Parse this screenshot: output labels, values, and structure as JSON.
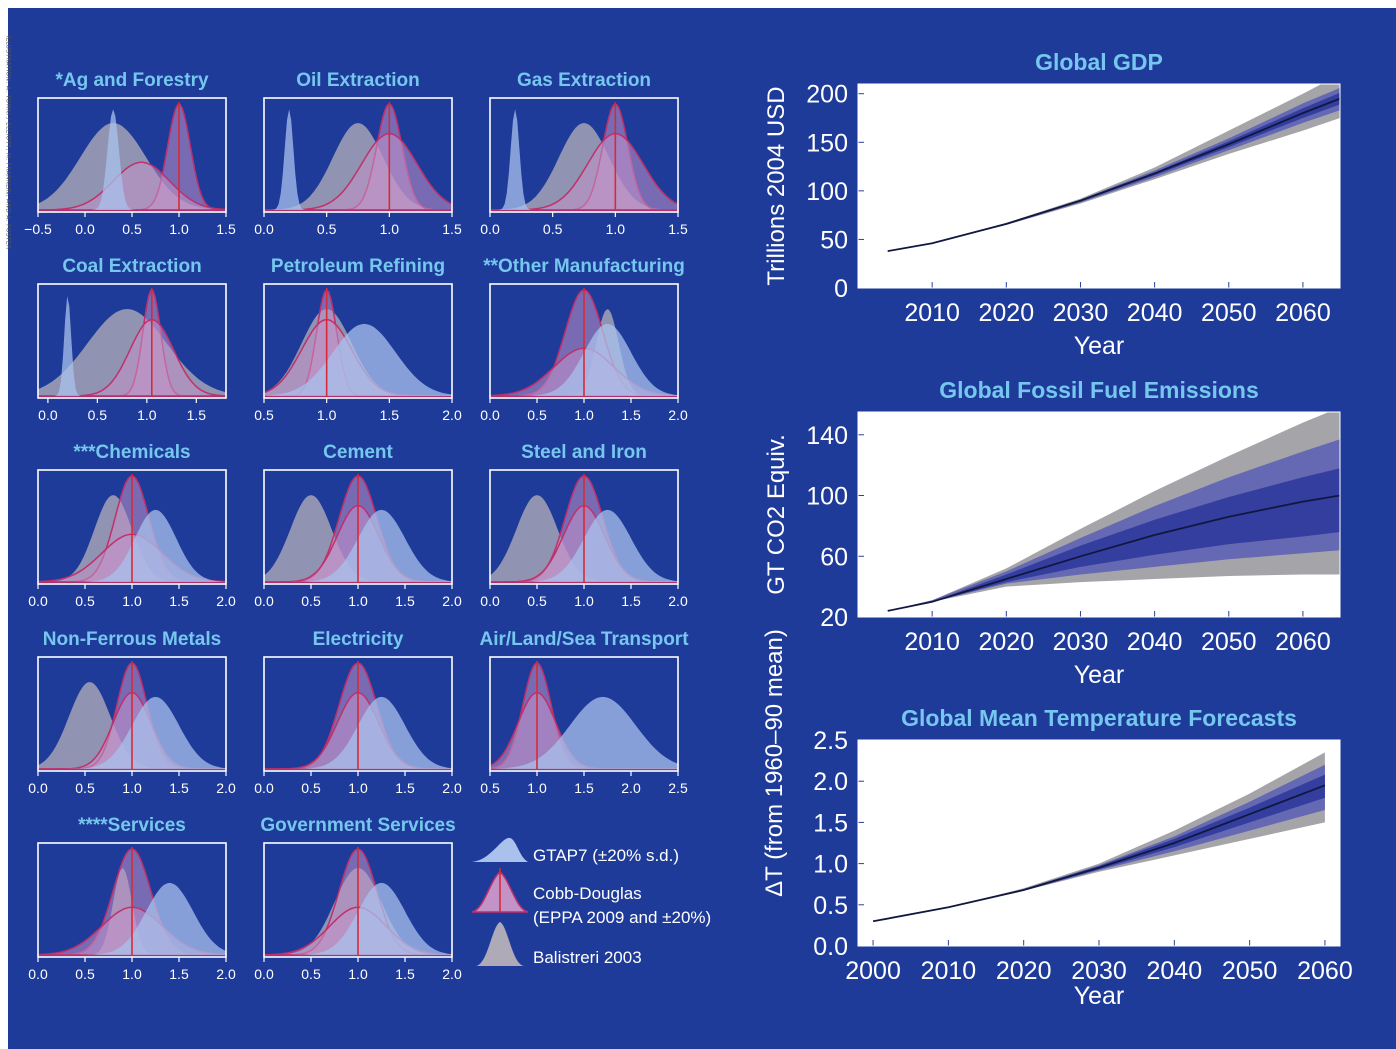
{
  "credit": "ILLUSTRATION: A. TOMKI / ELLIOTT, M. FRANKLIN, AND A. FOSTER",
  "colors": {
    "background": "#1e3b9a",
    "panel": "#1e3b9a",
    "title": "#76c7ee",
    "gtap": "#a9c1ec",
    "cobb": "#c393c8",
    "cobb_line": "#c0306a",
    "balistreri": "#aeaab8",
    "cd_marker": "#d62b36",
    "band_outer": "#8e8f93",
    "band_mid": "#5e62b4",
    "band_inner": "#2e3a9c",
    "median": "#101840"
  },
  "small_multiples": {
    "panels": [
      {
        "title": "*Ag and Forestry",
        "xlim": [
          -0.5,
          1.5
        ],
        "ticks": [
          "−0.5",
          "0.0",
          "0.5",
          "1.0",
          "1.5"
        ],
        "tick_values": [
          -0.5,
          0.0,
          0.5,
          1.0,
          1.5
        ],
        "cd": 1.0,
        "gtap": {
          "mu": 0.3,
          "sd": 0.06
        },
        "cobb": [
          {
            "mu": 1.0,
            "sd": 0.12
          },
          {
            "mu": 0.6,
            "sd": 0.3
          }
        ],
        "bal": {
          "mu": 0.3,
          "sd": 0.35
        }
      },
      {
        "title": "Oil Extraction",
        "xlim": [
          0.0,
          1.5
        ],
        "ticks": [
          "0.0",
          "0.5",
          "1.0",
          "1.5"
        ],
        "tick_values": [
          0.0,
          0.5,
          1.0,
          1.5
        ],
        "cd": 1.0,
        "gtap": {
          "mu": 0.2,
          "sd": 0.035
        },
        "cobb": [
          {
            "mu": 1.0,
            "sd": 0.1
          },
          {
            "mu": 1.0,
            "sd": 0.22
          }
        ],
        "bal": {
          "mu": 0.75,
          "sd": 0.2
        }
      },
      {
        "title": "Gas Extraction",
        "xlim": [
          0.0,
          1.5
        ],
        "ticks": [
          "0.0",
          "0.5",
          "1.0",
          "1.5"
        ],
        "tick_values": [
          0.0,
          0.5,
          1.0,
          1.5
        ],
        "cd": 1.0,
        "gtap": {
          "mu": 0.2,
          "sd": 0.035
        },
        "cobb": [
          {
            "mu": 1.0,
            "sd": 0.1
          },
          {
            "mu": 1.0,
            "sd": 0.22
          }
        ],
        "bal": {
          "mu": 0.75,
          "sd": 0.2
        }
      },
      {
        "title": "Coal Extraction",
        "xlim": [
          -0.1,
          1.8
        ],
        "ticks": [
          "0.0",
          "0.5",
          "1.0",
          "1.5"
        ],
        "tick_values": [
          0.0,
          0.5,
          1.0,
          1.5
        ],
        "cd": 1.05,
        "gtap": {
          "mu": 0.2,
          "sd": 0.035
        },
        "cobb": [
          {
            "mu": 1.05,
            "sd": 0.09
          },
          {
            "mu": 1.05,
            "sd": 0.22
          }
        ],
        "bal": {
          "mu": 0.8,
          "sd": 0.4
        }
      },
      {
        "title": "Petroleum Refining",
        "xlim": [
          0.5,
          2.0
        ],
        "ticks": [
          "0.5",
          "1.0",
          "1.5",
          "2.0"
        ],
        "tick_values": [
          0.5,
          1.0,
          1.5,
          2.0
        ],
        "cd": 1.0,
        "gtap": {
          "mu": 1.3,
          "sd": 0.25
        },
        "cobb": [
          {
            "mu": 1.0,
            "sd": 0.08
          },
          {
            "mu": 1.0,
            "sd": 0.2
          }
        ],
        "bal": {
          "mu": 1.0,
          "sd": 0.2
        }
      },
      {
        "title": "**Other Manufacturing",
        "xlim": [
          0.0,
          2.0
        ],
        "ticks": [
          "0.0",
          "0.5",
          "1.0",
          "1.5",
          "2.0"
        ],
        "tick_values": [
          0.0,
          0.5,
          1.0,
          1.5,
          2.0
        ],
        "cd": 1.0,
        "gtap": {
          "mu": 1.25,
          "sd": 0.25
        },
        "cobb": [
          {
            "mu": 1.0,
            "sd": 0.2
          },
          {
            "mu": 1.0,
            "sd": 0.32
          }
        ],
        "bal": {
          "mu": 1.25,
          "sd": 0.12
        }
      },
      {
        "title": "***Chemicals",
        "xlim": [
          0.0,
          2.0
        ],
        "ticks": [
          "0.0",
          "0.5",
          "1.0",
          "1.5",
          "2.0"
        ],
        "tick_values": [
          0.0,
          0.5,
          1.0,
          1.5,
          2.0
        ],
        "cd": 1.0,
        "gtap": {
          "mu": 1.25,
          "sd": 0.22
        },
        "cobb": [
          {
            "mu": 1.0,
            "sd": 0.18
          },
          {
            "mu": 1.0,
            "sd": 0.32
          }
        ],
        "bal": {
          "mu": 0.8,
          "sd": 0.2
        }
      },
      {
        "title": "Cement",
        "xlim": [
          0.0,
          2.0
        ],
        "ticks": [
          "0.0",
          "0.5",
          "1.0",
          "1.5",
          "2.0"
        ],
        "tick_values": [
          0.0,
          0.5,
          1.0,
          1.5,
          2.0
        ],
        "cd": 1.0,
        "gtap": {
          "mu": 1.25,
          "sd": 0.25
        },
        "cobb": [
          {
            "mu": 1.0,
            "sd": 0.2
          },
          {
            "mu": 1.0,
            "sd": 0.22
          }
        ],
        "bal": {
          "mu": 0.5,
          "sd": 0.22
        }
      },
      {
        "title": "Steel and Iron",
        "xlim": [
          0.0,
          2.0
        ],
        "ticks": [
          "0.0",
          "0.5",
          "1.0",
          "1.5",
          "2.0"
        ],
        "tick_values": [
          0.0,
          0.5,
          1.0,
          1.5,
          2.0
        ],
        "cd": 1.0,
        "gtap": {
          "mu": 1.25,
          "sd": 0.25
        },
        "cobb": [
          {
            "mu": 1.0,
            "sd": 0.2
          },
          {
            "mu": 1.0,
            "sd": 0.22
          }
        ],
        "bal": {
          "mu": 0.5,
          "sd": 0.22
        }
      },
      {
        "title": "Non-Ferrous Metals",
        "xlim": [
          0.0,
          2.0
        ],
        "ticks": [
          "0.0",
          "0.5",
          "1.0",
          "1.5",
          "2.0"
        ],
        "tick_values": [
          0.0,
          0.5,
          1.0,
          1.5,
          2.0
        ],
        "cd": 1.0,
        "gtap": {
          "mu": 1.25,
          "sd": 0.25
        },
        "cobb": [
          {
            "mu": 1.0,
            "sd": 0.16
          },
          {
            "mu": 1.0,
            "sd": 0.2
          }
        ],
        "bal": {
          "mu": 0.55,
          "sd": 0.22
        }
      },
      {
        "title": "Electricity",
        "xlim": [
          0.0,
          2.0
        ],
        "ticks": [
          "0.0",
          "0.5",
          "1.0",
          "1.5",
          "2.0"
        ],
        "tick_values": [
          0.0,
          0.5,
          1.0,
          1.5,
          2.0
        ],
        "cd": 1.0,
        "gtap": {
          "mu": 1.25,
          "sd": 0.25
        },
        "cobb": [
          {
            "mu": 1.0,
            "sd": 0.2
          },
          {
            "mu": 1.0,
            "sd": 0.22
          }
        ],
        "bal": null
      },
      {
        "title": "Air/Land/Sea Transport",
        "xlim": [
          0.5,
          2.5
        ],
        "ticks": [
          "0.5",
          "1.0",
          "1.5",
          "2.0",
          "2.5"
        ],
        "tick_values": [
          0.5,
          1.0,
          1.5,
          2.0,
          2.5
        ],
        "cd": 1.0,
        "gtap": {
          "mu": 1.7,
          "sd": 0.35
        },
        "cobb": [
          {
            "mu": 1.0,
            "sd": 0.15
          },
          {
            "mu": 1.0,
            "sd": 0.2
          }
        ],
        "bal": null
      },
      {
        "title": "****Services",
        "xlim": [
          0.0,
          2.0
        ],
        "ticks": [
          "0.0",
          "0.5",
          "1.0",
          "1.5",
          "2.0"
        ],
        "tick_values": [
          0.0,
          0.5,
          1.0,
          1.5,
          2.0
        ],
        "cd": 1.0,
        "gtap": {
          "mu": 1.4,
          "sd": 0.25
        },
        "cobb": [
          {
            "mu": 1.0,
            "sd": 0.2
          },
          {
            "mu": 1.0,
            "sd": 0.32
          }
        ],
        "bal": {
          "mu": 0.9,
          "sd": 0.1
        }
      },
      {
        "title": "Government Services",
        "xlim": [
          0.0,
          2.0
        ],
        "ticks": [
          "0.0",
          "0.5",
          "1.0",
          "1.5",
          "2.0"
        ],
        "tick_values": [
          0.0,
          0.5,
          1.0,
          1.5,
          2.0
        ],
        "cd": 1.0,
        "gtap": {
          "mu": 1.25,
          "sd": 0.25
        },
        "cobb": [
          {
            "mu": 1.0,
            "sd": 0.2
          },
          {
            "mu": 1.0,
            "sd": 0.3
          }
        ],
        "bal": {
          "mu": 1.0,
          "sd": 0.25
        }
      }
    ]
  },
  "legend": {
    "gtap": "GTAP7 (±20% s.d.)",
    "cobb_line1": "Cobb-Douglas",
    "cobb_line2": "(EPPA 2009 and ±20%)",
    "balistreri": "Balistreri 2003"
  },
  "chart_data": [
    {
      "type": "line",
      "title": "Global GDP",
      "xlabel": "Year",
      "ylabel": "Trillions 2004 USD",
      "xlim": [
        2000,
        2065
      ],
      "ylim": [
        0,
        210
      ],
      "xticks": [
        2010,
        2020,
        2030,
        2040,
        2050,
        2060
      ],
      "yticks": [
        0,
        50,
        100,
        150,
        200
      ],
      "x": [
        2004,
        2010,
        2020,
        2030,
        2040,
        2050,
        2060,
        2065
      ],
      "median": [
        38,
        46,
        66,
        90,
        118,
        148,
        180,
        195
      ],
      "bands": [
        {
          "name": "outer",
          "low": [
            38,
            46,
            65,
            87,
            112,
            138,
            162,
            175
          ],
          "high": [
            38,
            46,
            67,
            92,
            124,
            162,
            200,
            220
          ]
        },
        {
          "name": "middle",
          "low": [
            38,
            46,
            65,
            88,
            114,
            142,
            170,
            183
          ],
          "high": [
            38,
            46,
            66,
            91,
            121,
            154,
            190,
            206
          ]
        },
        {
          "name": "inner",
          "low": [
            38,
            46,
            66,
            89,
            116,
            145,
            175,
            189
          ],
          "high": [
            38,
            46,
            66,
            90,
            119,
            151,
            185,
            201
          ]
        }
      ]
    },
    {
      "type": "line",
      "title": "Global Fossil Fuel Emissions",
      "xlabel": "Year",
      "ylabel": "GT CO2 Equiv.",
      "xlim": [
        2000,
        2065
      ],
      "ylim": [
        20,
        155
      ],
      "xticks": [
        2010,
        2020,
        2030,
        2040,
        2050,
        2060
      ],
      "yticks": [
        20,
        60,
        100,
        140
      ],
      "x": [
        2004,
        2010,
        2020,
        2030,
        2040,
        2050,
        2060,
        2065
      ],
      "median": [
        24,
        30,
        45,
        60,
        74,
        86,
        96,
        100
      ],
      "bands": [
        {
          "name": "outer",
          "low": [
            24,
            30,
            40,
            43,
            45,
            47,
            48,
            48
          ],
          "high": [
            24,
            31,
            52,
            78,
            103,
            126,
            148,
            158
          ]
        },
        {
          "name": "middle",
          "low": [
            24,
            30,
            42,
            48,
            53,
            58,
            62,
            64
          ],
          "high": [
            24,
            31,
            50,
            72,
            93,
            112,
            129,
            137
          ]
        },
        {
          "name": "inner",
          "low": [
            24,
            30,
            43,
            53,
            61,
            68,
            73,
            76
          ],
          "high": [
            24,
            30,
            48,
            67,
            84,
            99,
            112,
            118
          ]
        }
      ]
    },
    {
      "type": "line",
      "title": "Global Mean Temperature Forecasts",
      "xlabel": "Year",
      "ylabel": "ΔT (from 1960–90 mean)",
      "xlim": [
        1998,
        2062
      ],
      "ylim": [
        0.0,
        2.5
      ],
      "xticks": [
        2000,
        2010,
        2020,
        2030,
        2040,
        2050,
        2060
      ],
      "yticks": [
        "0.0",
        "0.5",
        "1.0",
        "1.5",
        "2.0",
        "2.5"
      ],
      "ytick_values": [
        0.0,
        0.5,
        1.0,
        1.5,
        2.0,
        2.5
      ],
      "x": [
        2000,
        2010,
        2020,
        2030,
        2040,
        2050,
        2060
      ],
      "median": [
        0.3,
        0.47,
        0.68,
        0.95,
        1.25,
        1.6,
        1.95
      ],
      "bands": [
        {
          "name": "outer",
          "low": [
            0.3,
            0.47,
            0.67,
            0.9,
            1.1,
            1.3,
            1.5
          ],
          "high": [
            0.3,
            0.47,
            0.7,
            1.0,
            1.4,
            1.85,
            2.35
          ]
        },
        {
          "name": "middle",
          "low": [
            0.3,
            0.47,
            0.67,
            0.92,
            1.15,
            1.4,
            1.65
          ],
          "high": [
            0.3,
            0.47,
            0.69,
            0.98,
            1.33,
            1.75,
            2.2
          ]
        },
        {
          "name": "inner",
          "low": [
            0.3,
            0.47,
            0.68,
            0.93,
            1.2,
            1.5,
            1.8
          ],
          "high": [
            0.3,
            0.47,
            0.69,
            0.97,
            1.3,
            1.68,
            2.08
          ]
        }
      ]
    }
  ]
}
